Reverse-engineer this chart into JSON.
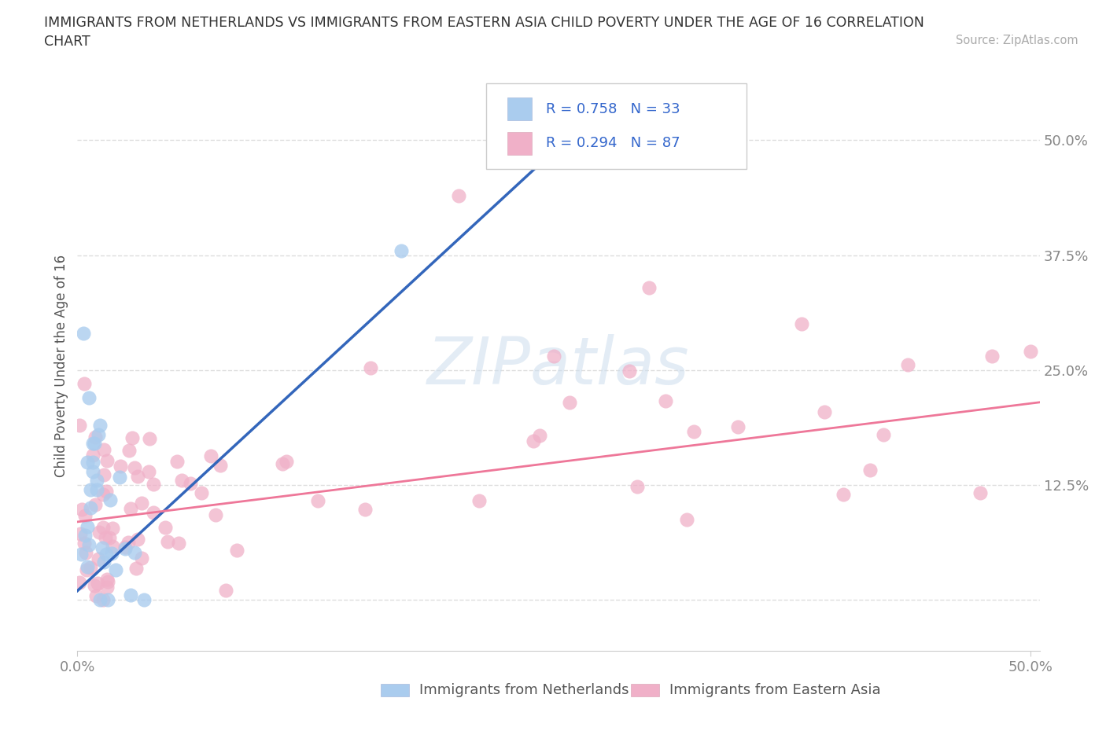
{
  "title_line1": "IMMIGRANTS FROM NETHERLANDS VS IMMIGRANTS FROM EASTERN ASIA CHILD POVERTY UNDER THE AGE OF 16 CORRELATION",
  "title_line2": "CHART",
  "source": "Source: ZipAtlas.com",
  "ylabel": "Child Poverty Under the Age of 16",
  "xlim": [
    0.0,
    0.505
  ],
  "ylim": [
    -0.055,
    0.565
  ],
  "yticks": [
    0.0,
    0.125,
    0.25,
    0.375,
    0.5
  ],
  "ytick_labels": [
    "",
    "12.5%",
    "25.0%",
    "37.5%",
    "50.0%"
  ],
  "xticks": [
    0.0,
    0.5
  ],
  "xtick_labels": [
    "0.0%",
    "50.0%"
  ],
  "background_color": "#ffffff",
  "grid_color": "#dddddd",
  "R_netherlands": 0.758,
  "N_netherlands": 33,
  "R_eastern_asia": 0.294,
  "N_eastern_asia": 87,
  "netherlands_color": "#aaccee",
  "eastern_asia_color": "#f0b0c8",
  "netherlands_line_color": "#3366bb",
  "eastern_asia_line_color": "#ee7799",
  "legend_text_color": "#3366cc",
  "label_color": "#333333",
  "tick_color": "#888888",
  "legend_label_netherlands": "Immigrants from Netherlands",
  "legend_label_eastern_asia": "Immigrants from Eastern Asia",
  "watermark": "ZIPatlas",
  "neth_line_x0": 0.0,
  "neth_line_x1": 0.285,
  "neth_line_y0": 0.01,
  "neth_line_y1": 0.555,
  "asia_line_x0": 0.0,
  "asia_line_x1": 0.505,
  "asia_line_y0": 0.085,
  "asia_line_y1": 0.215
}
